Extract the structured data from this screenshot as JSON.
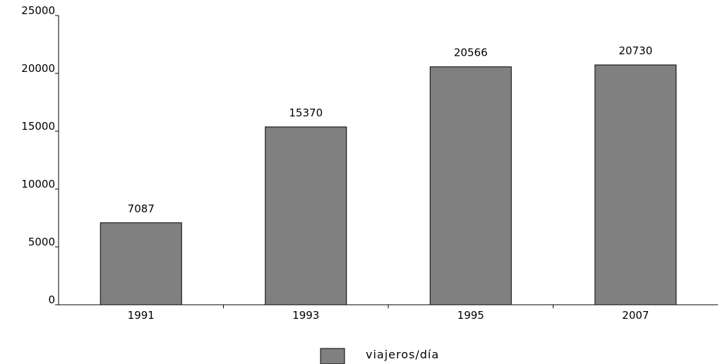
{
  "chart_data": {
    "type": "bar",
    "categories": [
      "1991",
      "1993",
      "1995",
      "2007"
    ],
    "series": [
      {
        "name": "viajeros/día",
        "values": [
          7087,
          15370,
          20566,
          20730
        ],
        "color": "#808080"
      }
    ],
    "data_labels": [
      "7087",
      "15370",
      "20566",
      "20730"
    ],
    "y_ticks": [
      "0",
      "5000",
      "10000",
      "15000",
      "20000",
      "25000"
    ],
    "ylim": [
      0,
      25000
    ],
    "grid": false,
    "legend": {
      "position": "bottom-center"
    },
    "title": "",
    "xlabel": "",
    "ylabel": ""
  }
}
